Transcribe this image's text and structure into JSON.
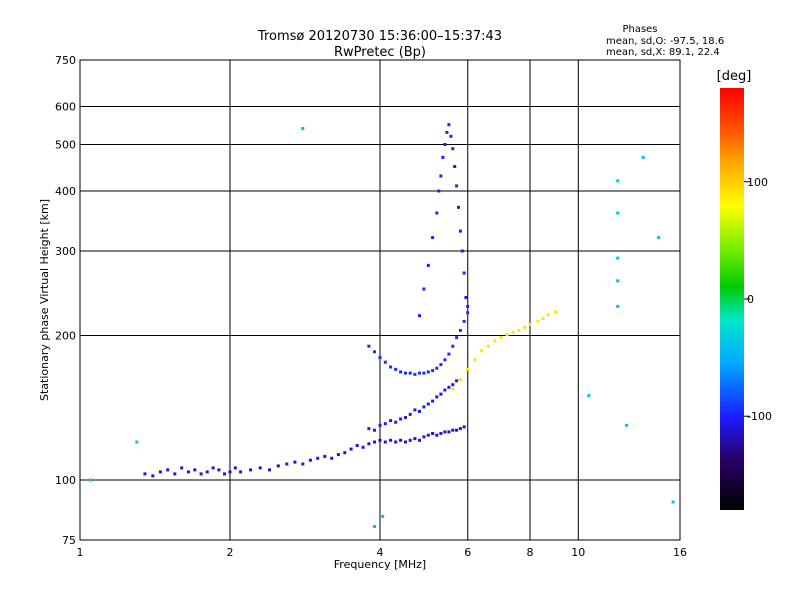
{
  "chart_data": {
    "type": "scatter",
    "title": "Tromsø 20120730 15:36:00–15:37:43",
    "subtitle": "RwPretec (Bp)",
    "xlabel": "Frequency [MHz]",
    "ylabel": "Stationary phase Virtual Height [km]",
    "x_scale": "log",
    "y_scale": "log",
    "xlim": [
      1,
      16
    ],
    "ylim": [
      75,
      750
    ],
    "x_ticks": [
      1,
      2,
      4,
      6,
      8,
      10,
      16
    ],
    "x_tick_labels": [
      "1",
      "2",
      "4",
      "6",
      "8",
      "10",
      "16"
    ],
    "y_ticks": [
      75,
      100,
      200,
      300,
      400,
      500,
      600,
      750
    ],
    "y_tick_labels": [
      "75",
      "100",
      "200",
      "300",
      "400",
      "500",
      "600",
      "750"
    ],
    "grid": true,
    "stats": {
      "heading": "Phases",
      "o_line": "mean, sd,O: -97.5, 18.6",
      "x_line": "mean, sd,X:  89.1, 22.4"
    },
    "colorbar": {
      "title": "[deg]",
      "range": [
        -180,
        180
      ],
      "ticks": [
        100,
        0,
        -100
      ],
      "tick_labels": [
        "100",
        "0",
        "-100"
      ]
    },
    "series": [
      {
        "trace": "lower-trace",
        "phase_deg": -110,
        "points": [
          [
            1.35,
            103
          ],
          [
            1.4,
            102
          ],
          [
            1.45,
            104
          ],
          [
            1.5,
            105
          ],
          [
            1.55,
            103
          ],
          [
            1.6,
            106
          ],
          [
            1.65,
            104
          ],
          [
            1.7,
            105
          ],
          [
            1.75,
            103
          ],
          [
            1.8,
            104
          ],
          [
            1.85,
            106
          ],
          [
            1.9,
            105
          ],
          [
            1.95,
            103
          ],
          [
            2.0,
            104
          ],
          [
            2.05,
            106
          ],
          [
            2.1,
            104
          ],
          [
            2.2,
            105
          ],
          [
            2.3,
            106
          ],
          [
            2.4,
            105
          ],
          [
            2.5,
            107
          ],
          [
            2.6,
            108
          ],
          [
            2.7,
            109
          ],
          [
            2.8,
            108
          ],
          [
            2.9,
            110
          ],
          [
            3.0,
            111
          ],
          [
            3.1,
            112
          ],
          [
            3.2,
            111
          ],
          [
            3.3,
            113
          ],
          [
            3.4,
            114
          ],
          [
            3.5,
            116
          ],
          [
            3.6,
            118
          ],
          [
            3.7,
            117
          ],
          [
            3.8,
            119
          ],
          [
            3.9,
            120
          ],
          [
            4.0,
            121
          ],
          [
            4.1,
            120
          ],
          [
            4.2,
            121
          ],
          [
            4.3,
            120
          ],
          [
            4.4,
            121
          ],
          [
            4.5,
            120
          ],
          [
            4.6,
            121
          ],
          [
            4.7,
            122
          ],
          [
            4.8,
            121
          ],
          [
            4.9,
            123
          ],
          [
            5.0,
            124
          ],
          [
            5.1,
            125
          ],
          [
            5.2,
            124
          ],
          [
            5.3,
            125
          ],
          [
            5.4,
            126
          ],
          [
            5.5,
            126
          ],
          [
            5.6,
            127
          ],
          [
            5.7,
            127
          ],
          [
            5.8,
            128
          ],
          [
            5.9,
            129
          ]
        ]
      },
      {
        "trace": "middle-trace",
        "phase_deg": -105,
        "points": [
          [
            3.8,
            128
          ],
          [
            3.9,
            127
          ],
          [
            4.0,
            130
          ],
          [
            4.1,
            131
          ],
          [
            4.2,
            133
          ],
          [
            4.3,
            132
          ],
          [
            4.4,
            134
          ],
          [
            4.5,
            135
          ],
          [
            4.6,
            137
          ],
          [
            4.7,
            140
          ],
          [
            4.8,
            139
          ],
          [
            4.9,
            142
          ],
          [
            5.0,
            144
          ],
          [
            5.1,
            146
          ],
          [
            5.2,
            149
          ],
          [
            5.3,
            151
          ],
          [
            5.4,
            154
          ],
          [
            5.5,
            156
          ],
          [
            5.6,
            158
          ],
          [
            5.7,
            161
          ]
        ]
      },
      {
        "trace": "upper-trace",
        "phase_deg": -95,
        "points": [
          [
            3.8,
            190
          ],
          [
            3.9,
            185
          ],
          [
            4.0,
            180
          ],
          [
            4.1,
            176
          ],
          [
            4.2,
            172
          ],
          [
            4.3,
            170
          ],
          [
            4.4,
            168
          ],
          [
            4.5,
            167
          ],
          [
            4.6,
            167
          ],
          [
            4.7,
            166
          ],
          [
            4.8,
            167
          ],
          [
            4.9,
            167
          ],
          [
            5.0,
            168
          ],
          [
            5.1,
            169
          ],
          [
            5.2,
            171
          ],
          [
            5.3,
            174
          ],
          [
            5.4,
            178
          ],
          [
            5.5,
            183
          ],
          [
            5.6,
            190
          ],
          [
            5.7,
            198
          ],
          [
            5.8,
            205
          ],
          [
            5.9,
            214
          ],
          [
            6.0,
            223
          ]
        ]
      },
      {
        "trace": "vertical-spread",
        "phase_deg": -100,
        "points": [
          [
            4.8,
            220
          ],
          [
            4.9,
            250
          ],
          [
            5.0,
            280
          ],
          [
            5.1,
            320
          ],
          [
            5.2,
            360
          ],
          [
            5.25,
            400
          ],
          [
            5.3,
            430
          ],
          [
            5.35,
            470
          ],
          [
            5.4,
            500
          ],
          [
            5.45,
            530
          ],
          [
            5.5,
            550
          ],
          [
            5.55,
            520
          ],
          [
            5.6,
            490
          ],
          [
            5.65,
            450
          ],
          [
            5.7,
            410
          ],
          [
            5.75,
            370
          ],
          [
            5.8,
            330
          ],
          [
            5.85,
            300
          ],
          [
            5.9,
            270
          ],
          [
            5.95,
            240
          ],
          [
            6.0,
            230
          ]
        ]
      },
      {
        "trace": "x-mode",
        "phase_deg": 90,
        "points": [
          [
            5.6,
            155
          ],
          [
            5.8,
            162
          ],
          [
            6.0,
            170
          ],
          [
            6.2,
            178
          ],
          [
            6.4,
            186
          ],
          [
            6.6,
            190
          ],
          [
            6.8,
            195
          ],
          [
            7.0,
            198
          ],
          [
            7.2,
            201
          ],
          [
            7.4,
            203
          ],
          [
            7.6,
            205
          ],
          [
            7.8,
            208
          ],
          [
            8.0,
            211
          ],
          [
            8.3,
            214
          ],
          [
            8.5,
            217
          ],
          [
            8.7,
            221
          ],
          [
            9.0,
            224
          ]
        ]
      },
      {
        "trace": "scattered",
        "phase_deg": -40,
        "points": [
          [
            1.05,
            100
          ],
          [
            1.3,
            120
          ],
          [
            2.8,
            540
          ],
          [
            3.9,
            80
          ],
          [
            4.05,
            84
          ],
          [
            10.5,
            150
          ],
          [
            12.0,
            420
          ],
          [
            12.0,
            360
          ],
          [
            12.0,
            290
          ],
          [
            12.0,
            260
          ],
          [
            12.0,
            230
          ],
          [
            12.5,
            130
          ],
          [
            13.5,
            470
          ],
          [
            14.5,
            320
          ],
          [
            15.5,
            90
          ]
        ]
      }
    ]
  }
}
